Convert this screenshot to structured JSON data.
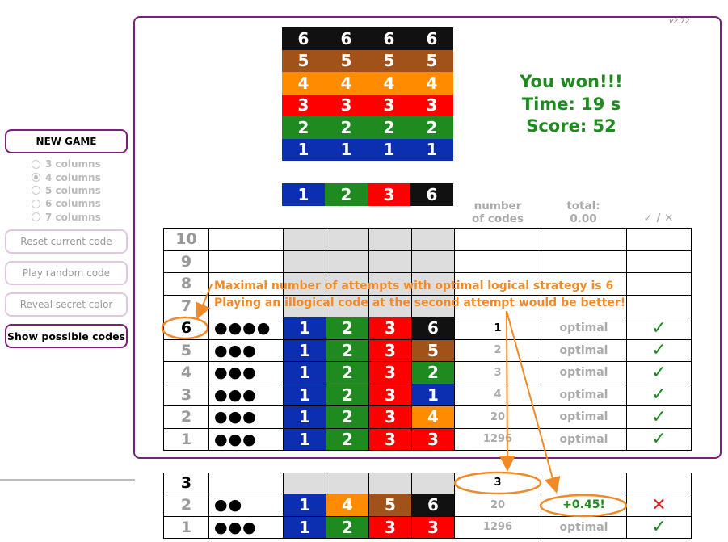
{
  "sidebar": {
    "new_game": "NEW GAME",
    "columns": [
      {
        "label": "3 columns",
        "selected": false
      },
      {
        "label": "4 columns",
        "selected": true
      },
      {
        "label": "5 columns",
        "selected": false
      },
      {
        "label": "6 columns",
        "selected": false
      },
      {
        "label": "7 columns",
        "selected": false
      }
    ],
    "reset": "Reset current code",
    "random": "Play random code",
    "reveal": "Reveal secret color",
    "show_codes": "Show possible codes"
  },
  "version": "v2.72",
  "palette": {
    "colors": [
      "#111111",
      "#a0521a",
      "#ff8c00",
      "#ff0000",
      "#1f8a1f",
      "#0b2fb0"
    ],
    "rows": [
      [
        "6",
        "6",
        "6",
        "6"
      ],
      [
        "5",
        "5",
        "5",
        "5"
      ],
      [
        "4",
        "4",
        "4",
        "4"
      ],
      [
        "3",
        "3",
        "3",
        "3"
      ],
      [
        "2",
        "2",
        "2",
        "2"
      ],
      [
        "1",
        "1",
        "1",
        "1"
      ]
    ]
  },
  "status": {
    "won": "You won!!!",
    "time": "Time: 19 s",
    "score": "Score: 52"
  },
  "secret": [
    "1",
    "2",
    "3",
    "6"
  ],
  "headers": {
    "number_line1": "number",
    "number_line2": "of codes",
    "total_line1": "total:",
    "total_line2": "0.00",
    "check": "✓ / ✕"
  },
  "board": {
    "empty_rows": [
      "10",
      "9",
      "8",
      "7"
    ],
    "rows": [
      {
        "n": "6",
        "pegs": "●●●●",
        "code": [
          "1",
          "2",
          "3",
          "6"
        ],
        "codes": "1",
        "status": "optimal",
        "mark": "✓"
      },
      {
        "n": "5",
        "pegs": "●●●",
        "code": [
          "1",
          "2",
          "3",
          "5"
        ],
        "codes": "2",
        "status": "optimal",
        "mark": "✓"
      },
      {
        "n": "4",
        "pegs": "●●●",
        "code": [
          "1",
          "2",
          "3",
          "2"
        ],
        "codes": "3",
        "status": "optimal",
        "mark": "✓"
      },
      {
        "n": "3",
        "pegs": "●●●",
        "code": [
          "1",
          "2",
          "3",
          "1"
        ],
        "codes": "4",
        "status": "optimal",
        "mark": "✓"
      },
      {
        "n": "2",
        "pegs": "●●●",
        "code": [
          "1",
          "2",
          "3",
          "4"
        ],
        "codes": "20",
        "status": "optimal",
        "mark": "✓"
      },
      {
        "n": "1",
        "pegs": "●●●",
        "code": [
          "1",
          "2",
          "3",
          "3"
        ],
        "codes": "1296",
        "status": "optimal",
        "mark": "✓"
      }
    ]
  },
  "alt_board": {
    "rows": [
      {
        "n": "3",
        "pegs": "",
        "code": [
          "",
          "",
          "",
          ""
        ],
        "codes": "3",
        "status": "",
        "mark": ""
      },
      {
        "n": "2",
        "pegs": "●●",
        "code": [
          "1",
          "4",
          "5",
          "6"
        ],
        "codes": "20",
        "status": "+0.45!",
        "mark": "✕"
      },
      {
        "n": "1",
        "pegs": "●●●",
        "code": [
          "1",
          "2",
          "3",
          "3"
        ],
        "codes": "1296",
        "status": "optimal",
        "mark": "✓"
      }
    ]
  },
  "annotations": {
    "line1": "Maximal number of attempts with optimal logical strategy is 6",
    "line2": "Playing an illogical code at the second attempt would be better!"
  }
}
